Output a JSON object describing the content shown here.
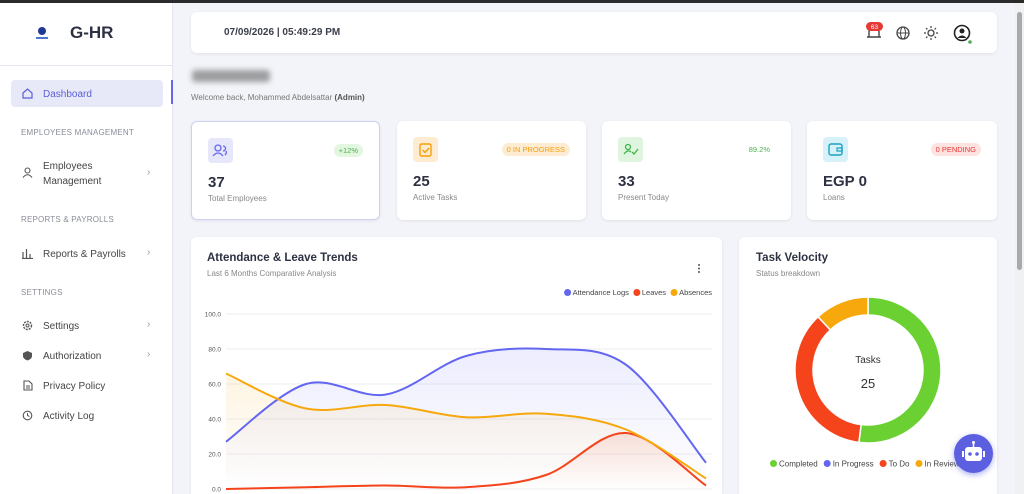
{
  "sidebar": {
    "brand": "G-HR",
    "dashboard": "Dashboard",
    "sections": [
      {
        "title": "EMPLOYEES MANAGEMENT",
        "items": [
          "Employees Management"
        ]
      },
      {
        "title": "REPORTS & PAYROLLS",
        "items": [
          "Reports & Payrolls"
        ]
      },
      {
        "title": "SETTINGS",
        "items": [
          "Settings",
          "Authorization",
          "Privacy Policy",
          "Activity Log"
        ]
      }
    ]
  },
  "header": {
    "datetime": "07/09/2026 | 05:49:29 PM",
    "notifications": 63
  },
  "welcome": {
    "text": "Welcome back, Mohammed Abdelsattar",
    "role": "(Admin)"
  },
  "stats": [
    {
      "value": 37,
      "label": "Total Employees",
      "badge": "+12%"
    },
    {
      "value": 25,
      "label": "Active Tasks",
      "badge": "0 IN PROGRESS"
    },
    {
      "value": 33,
      "label": "Present Today",
      "badge": "89.2%"
    },
    {
      "value": "EGP 0",
      "label": "Loans",
      "badge": "0 PENDING"
    }
  ],
  "chart_data": [
    {
      "type": "line",
      "title": "Attendance & Leave Trends",
      "subtitle": "Last 6 Months Comparative Analysis",
      "series": [
        {
          "name": "Attendance Logs",
          "color": "#6366f1",
          "values": [
            27,
            60,
            54,
            76,
            80,
            71,
            15
          ]
        },
        {
          "name": "Leaves",
          "color": "#f5431c",
          "values": [
            0,
            1,
            2,
            1,
            8,
            32,
            2
          ]
        },
        {
          "name": "Absences",
          "color": "#f6a80c",
          "values": [
            66,
            46,
            48,
            41,
            43,
            34,
            6
          ]
        }
      ],
      "ylim": [
        0,
        100
      ],
      "yticks": [
        {
          "value": 0,
          "label": "0.0"
        },
        {
          "value": 20,
          "label": "20.0"
        },
        {
          "value": 40,
          "label": "40.0"
        },
        {
          "value": 60,
          "label": "60.0"
        },
        {
          "value": 80,
          "label": "80.0"
        },
        {
          "value": 100,
          "label": "100.0"
        }
      ],
      "grid": true,
      "legend": "top-right"
    },
    {
      "type": "donut",
      "title": "Task Velocity",
      "subtitle": "Status breakdown",
      "categories": [
        "Completed",
        "In Progress",
        "To Do",
        "In Review"
      ],
      "values": [
        13,
        0,
        9,
        3
      ],
      "colors": [
        "#6bd133",
        "#6366f1",
        "#f5431c",
        "#f6a80c"
      ],
      "center_label": "Tasks",
      "center_value": 25
    }
  ]
}
